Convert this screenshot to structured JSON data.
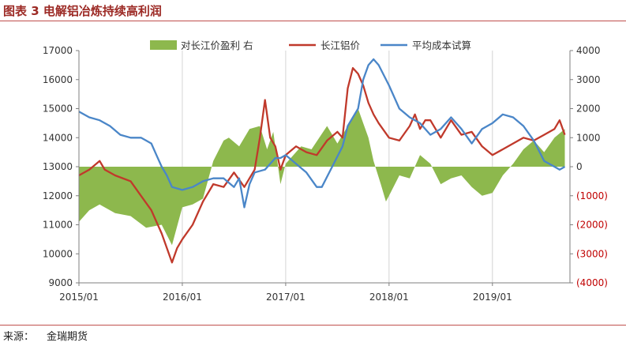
{
  "figure": {
    "title": "图表 3  电解铝冶炼持续高利润",
    "source_label": "来源：",
    "source_name": "金瑞期货"
  },
  "chart_data": {
    "type": "line",
    "x_range": [
      "2015-01",
      "2019-09"
    ],
    "x_ticks": [
      "2015/01",
      "2016/01",
      "2017/01",
      "2018/01",
      "2019/01"
    ],
    "y_left": {
      "range": [
        9000,
        17000
      ],
      "ticks": [
        9000,
        10000,
        11000,
        12000,
        13000,
        14000,
        15000,
        16000,
        17000
      ]
    },
    "y_right": {
      "range": [
        -4000,
        4000
      ],
      "ticks": [
        4000,
        3000,
        2000,
        1000,
        0,
        -1000,
        -2000,
        -3000,
        -4000
      ],
      "tick_labels": [
        "4000",
        "3000",
        "2000",
        "1000",
        "0",
        "(1000)",
        "(2000)",
        "(3000)",
        "(4000)"
      ]
    },
    "colors": {
      "profit": "#8db84d",
      "price": "#c0392b",
      "cost": "#4a86c8"
    },
    "series": [
      {
        "name": "对长江价盈利 右",
        "axis": "right",
        "kind": "area",
        "x": [
          2015.0,
          2015.1,
          2015.2,
          2015.35,
          2015.5,
          2015.65,
          2015.8,
          2015.9,
          2016.0,
          2016.1,
          2016.2,
          2016.3,
          2016.4,
          2016.45,
          2016.55,
          2016.65,
          2016.75,
          2016.82,
          2016.88,
          2016.95,
          2017.0,
          2017.15,
          2017.25,
          2017.4,
          2017.5,
          2017.6,
          2017.7,
          2017.75,
          2017.8,
          2017.85,
          2017.92,
          2017.97,
          2018.0,
          2018.1,
          2018.2,
          2018.3,
          2018.4,
          2018.5,
          2018.6,
          2018.7,
          2018.8,
          2018.9,
          2019.0,
          2019.1,
          2019.2,
          2019.3,
          2019.4,
          2019.5,
          2019.6,
          2019.7
        ],
        "values": [
          -1900,
          -1500,
          -1300,
          -1600,
          -1700,
          -2100,
          -2000,
          -2700,
          -1400,
          -1300,
          -1100,
          200,
          900,
          1000,
          700,
          1300,
          1400,
          600,
          1200,
          -600,
          100,
          700,
          600,
          1400,
          800,
          1400,
          2000,
          1500,
          1000,
          200,
          -600,
          -1200,
          -1000,
          -300,
          -400,
          400,
          100,
          -600,
          -400,
          -300,
          -700,
          -1000,
          -900,
          -300,
          100,
          600,
          900,
          500,
          1000,
          1300
        ]
      },
      {
        "name": "长江铝价",
        "axis": "left",
        "kind": "line",
        "x": [
          2015.0,
          2015.1,
          2015.2,
          2015.25,
          2015.35,
          2015.5,
          2015.6,
          2015.7,
          2015.8,
          2015.9,
          2015.95,
          2016.0,
          2016.1,
          2016.2,
          2016.3,
          2016.4,
          2016.5,
          2016.6,
          2016.7,
          2016.75,
          2016.8,
          2016.85,
          2016.9,
          2016.95,
          2017.0,
          2017.1,
          2017.2,
          2017.3,
          2017.4,
          2017.5,
          2017.55,
          2017.6,
          2017.65,
          2017.7,
          2017.75,
          2017.8,
          2017.85,
          2017.9,
          2018.0,
          2018.1,
          2018.2,
          2018.25,
          2018.3,
          2018.35,
          2018.4,
          2018.5,
          2018.6,
          2018.7,
          2018.8,
          2018.9,
          2019.0,
          2019.1,
          2019.2,
          2019.3,
          2019.4,
          2019.5,
          2019.6,
          2019.65,
          2019.7
        ],
        "values": [
          12700,
          12900,
          13200,
          12900,
          12700,
          12500,
          12000,
          11500,
          10700,
          9700,
          10200,
          10500,
          11000,
          11800,
          12400,
          12300,
          12800,
          12300,
          12900,
          14000,
          15300,
          14000,
          13700,
          12900,
          13400,
          13700,
          13500,
          13400,
          13900,
          14200,
          14000,
          15700,
          16400,
          16200,
          15800,
          15200,
          14800,
          14500,
          14000,
          13900,
          14400,
          14800,
          14300,
          14600,
          14600,
          14000,
          14600,
          14100,
          14200,
          13700,
          13400,
          13600,
          13800,
          14000,
          13900,
          14100,
          14300,
          14600,
          14100
        ]
      },
      {
        "name": "平均成本试算",
        "axis": "left",
        "kind": "line",
        "x": [
          2015.0,
          2015.1,
          2015.2,
          2015.3,
          2015.4,
          2015.5,
          2015.6,
          2015.65,
          2015.7,
          2015.75,
          2015.8,
          2015.85,
          2015.9,
          2016.0,
          2016.1,
          2016.2,
          2016.3,
          2016.4,
          2016.5,
          2016.55,
          2016.6,
          2016.65,
          2016.7,
          2016.8,
          2016.9,
          2016.95,
          2017.0,
          2017.1,
          2017.2,
          2017.3,
          2017.35,
          2017.45,
          2017.55,
          2017.6,
          2017.7,
          2017.75,
          2017.8,
          2017.85,
          2017.9,
          2018.0,
          2018.1,
          2018.2,
          2018.3,
          2018.4,
          2018.5,
          2018.6,
          2018.7,
          2018.8,
          2018.9,
          2019.0,
          2019.1,
          2019.2,
          2019.3,
          2019.4,
          2019.5,
          2019.6,
          2019.65,
          2019.7
        ],
        "values": [
          14900,
          14700,
          14600,
          14400,
          14100,
          14000,
          14000,
          13900,
          13800,
          13400,
          13000,
          12700,
          12300,
          12200,
          12300,
          12500,
          12600,
          12600,
          12300,
          12600,
          11600,
          12400,
          12800,
          12900,
          13300,
          13300,
          13400,
          13100,
          12800,
          12300,
          12300,
          13000,
          13700,
          14400,
          15000,
          16000,
          16500,
          16700,
          16500,
          15800,
          15000,
          14700,
          14500,
          14100,
          14300,
          14700,
          14300,
          13800,
          14300,
          14500,
          14800,
          14700,
          14400,
          13900,
          13200,
          13000,
          12900,
          13000
        ]
      }
    ]
  }
}
